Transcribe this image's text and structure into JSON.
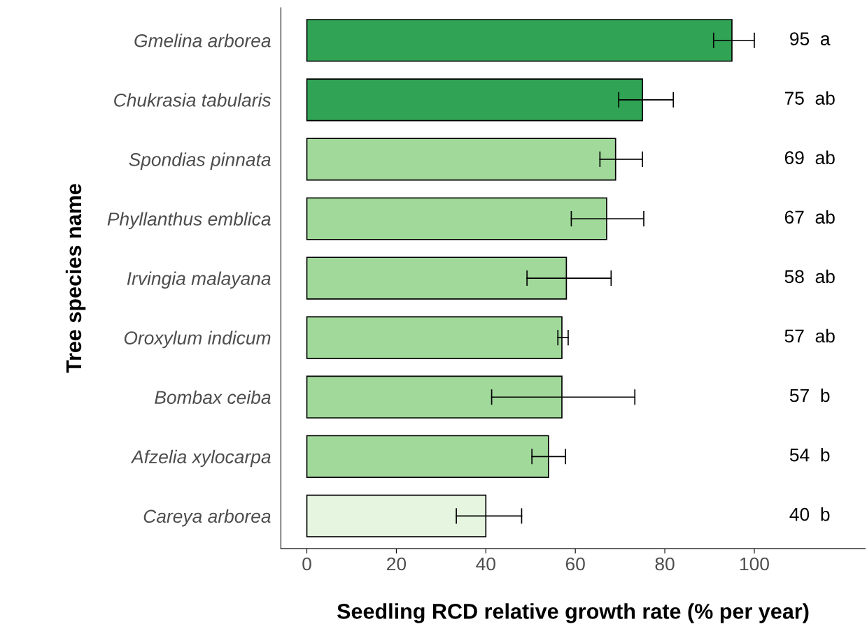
{
  "chart_data": {
    "type": "bar",
    "orientation": "horizontal",
    "ylabel": "Tree species name",
    "xlabel": "Seedling RCD relative growth rate (% per year)",
    "categories": [
      "Gmelina arborea",
      "Chukrasia tabularis",
      "Spondias pinnata",
      "Phyllanthus emblica",
      "Irvingia malayana",
      "Oroxylum indicum",
      "Bombax ceiba",
      "Afzelia xylocarpa",
      "Careya arborea"
    ],
    "values": [
      95,
      75,
      69,
      67,
      58,
      57,
      57,
      54,
      40
    ],
    "colors": [
      "#31a354",
      "#31a354",
      "#a1d99b",
      "#a1d99b",
      "#a1d99b",
      "#a1d99b",
      "#a1d99b",
      "#a1d99b",
      "#e5f5e0"
    ],
    "errors": [
      [
        90.9,
        100.0
      ],
      [
        69.7,
        81.9
      ],
      [
        65.5,
        75.0
      ],
      [
        59.1,
        75.3
      ],
      [
        49.2,
        68.0
      ],
      [
        56.1,
        58.4
      ],
      [
        41.3,
        73.3
      ],
      [
        50.3,
        57.8
      ],
      [
        33.4,
        48.0
      ]
    ],
    "value_labels": [
      "95  a",
      "75  ab",
      "69  ab",
      "67  ab",
      "58  ab",
      "57  ab",
      "57  b",
      "54  b",
      "40  b"
    ],
    "xlim": [
      -5.8,
      124.8
    ],
    "xticks": [
      0,
      20,
      40,
      60,
      80,
      100
    ],
    "grid": false,
    "legend": false
  }
}
